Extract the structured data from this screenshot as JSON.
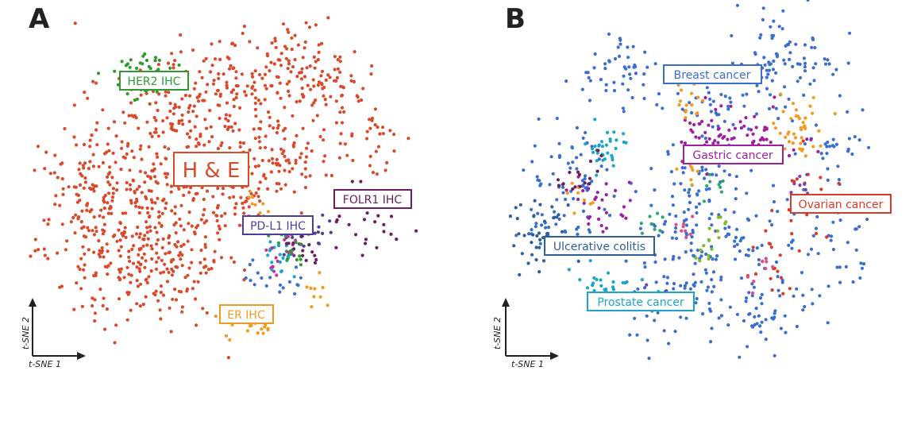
{
  "panels": [
    {
      "letter": "A",
      "xlabel": "t-SNE 1",
      "ylabel": "t-SNE 2",
      "labels": [
        {
          "text": "HER2 IHC",
          "color": "#2e9a30",
          "big": false
        },
        {
          "text": "H & E",
          "color": "#d94a2b",
          "big": true
        },
        {
          "text": "FOLR1 IHC",
          "color": "#6b1d5e",
          "big": false
        },
        {
          "text": "PD-L1 IHC",
          "color": "#4a3fa0",
          "big": false
        },
        {
          "text": "ER IHC",
          "color": "#f29a1f",
          "big": false
        }
      ]
    },
    {
      "letter": "B",
      "xlabel": "t-SNE 1",
      "ylabel": "t-SNE 2",
      "labels": [
        {
          "text": "Breast cancer",
          "color": "#3a6fd0",
          "big": false
        },
        {
          "text": "Gastric cancer",
          "color": "#a01fa0",
          "big": false
        },
        {
          "text": "Ovarian cancer",
          "color": "#d93a2b",
          "big": false
        },
        {
          "text": "Ulcerative colitis",
          "color": "#2d5f9a",
          "big": false
        },
        {
          "text": "Prostate cancer",
          "color": "#1aa6c8",
          "big": false
        }
      ]
    }
  ],
  "chart_data": [
    {
      "type": "scatter",
      "title": "",
      "xlabel": "t-SNE 1",
      "ylabel": "t-SNE 2",
      "series": [
        {
          "name": "H & E",
          "color": "#d94a2b"
        },
        {
          "name": "HER2 IHC",
          "color": "#2e9a30"
        },
        {
          "name": "PD-L1 IHC",
          "color": "#4a3fa0"
        },
        {
          "name": "FOLR1 IHC",
          "color": "#6b1d5e"
        },
        {
          "name": "ER IHC",
          "color": "#f29a1f"
        }
      ],
      "x": [],
      "y": []
    },
    {
      "type": "scatter",
      "title": "",
      "xlabel": "t-SNE 1",
      "ylabel": "t-SNE 2",
      "series": [
        {
          "name": "Breast cancer",
          "color": "#3a6fd0"
        },
        {
          "name": "Gastric cancer",
          "color": "#a01fa0"
        },
        {
          "name": "Ovarian cancer",
          "color": "#d93a2b"
        },
        {
          "name": "Ulcerative colitis",
          "color": "#2d5f9a"
        },
        {
          "name": "Prostate cancer",
          "color": "#1aa6c8"
        }
      ],
      "x": [],
      "y": []
    }
  ]
}
